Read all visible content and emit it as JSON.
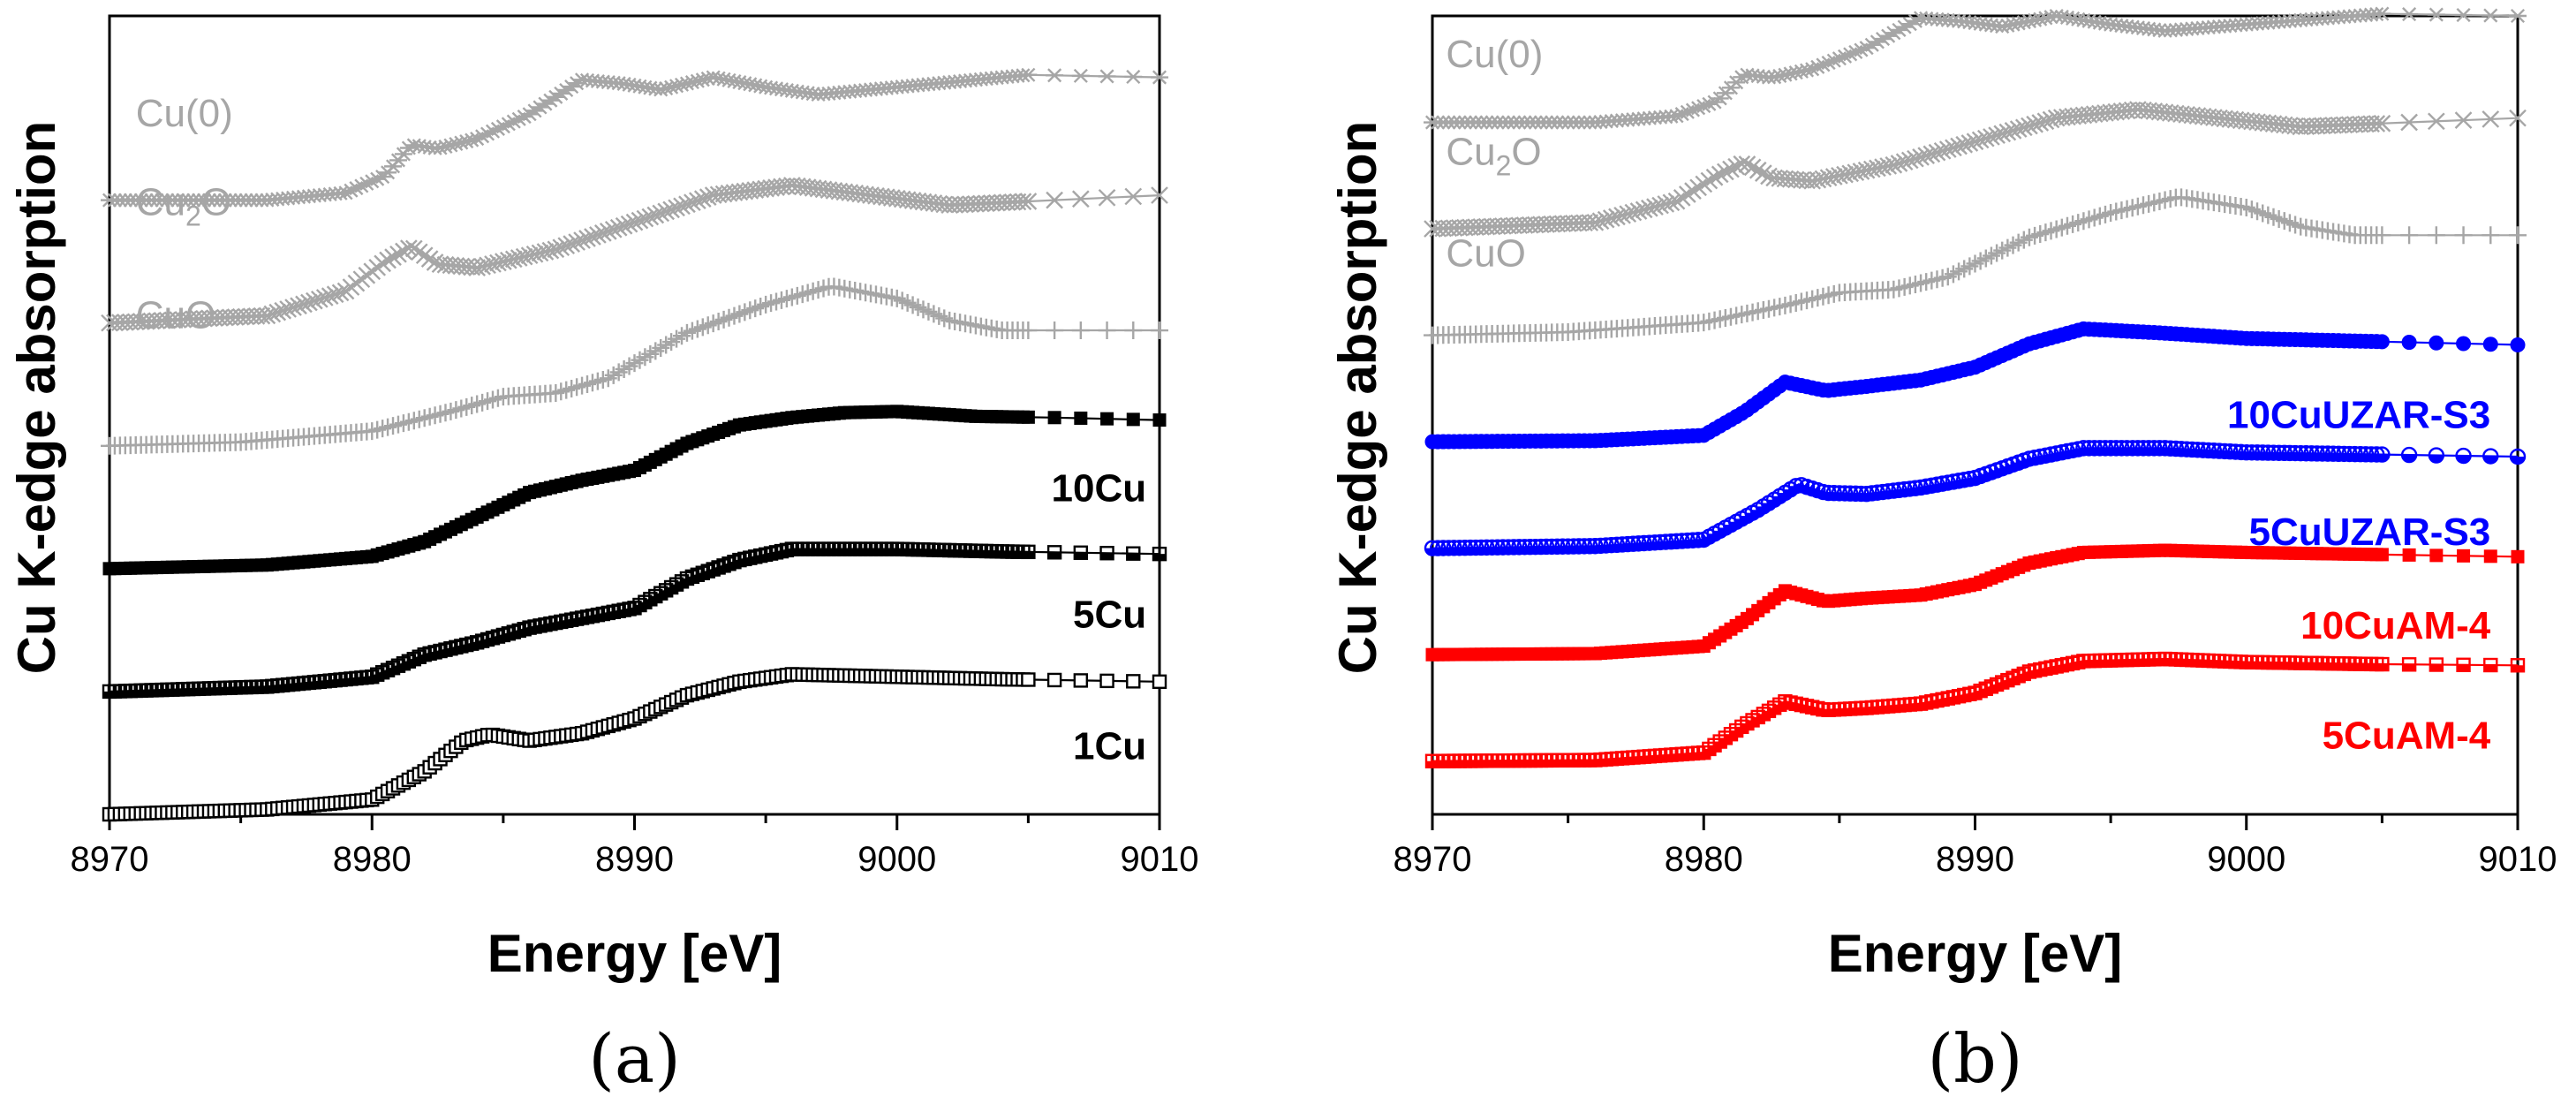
{
  "chart_data": [
    {
      "type": "line",
      "panel_label": "(a)",
      "xlabel": "Energy [eV]",
      "ylabel": "Cu K-edge absorption",
      "xlim": [
        8970,
        9010
      ],
      "ylim": [
        0,
        6.5
      ],
      "xticks": [
        "8970",
        "8980",
        "8990",
        "9000",
        "9010"
      ],
      "grid": false,
      "series": [
        {
          "name": "Cu(0)",
          "label_parts": [
            "Cu(0)"
          ],
          "color": "#a6a6a6",
          "marker": "asterisk",
          "label_x": 8971,
          "label_y": 5.6,
          "x": [
            8970,
            8976,
            8979,
            8980.5,
            8981.5,
            8982.5,
            8984,
            8986,
            8988,
            8989.5,
            8991,
            8993,
            8995,
            8997,
            9000,
            9005,
            9010
          ],
          "y": [
            5.0,
            5.0,
            5.06,
            5.2,
            5.45,
            5.42,
            5.5,
            5.7,
            5.98,
            5.95,
            5.9,
            6.0,
            5.92,
            5.86,
            5.92,
            6.02,
            6.0
          ]
        },
        {
          "name": "Cu2O",
          "label_parts": [
            "Cu",
            "2",
            "O"
          ],
          "color": "#a6a6a6",
          "marker": "cross",
          "label_x": 8971,
          "label_y": 4.88,
          "x": [
            8970,
            8976,
            8979,
            8980.5,
            8981.5,
            8982.5,
            8984,
            8987,
            8990,
            8993,
            8996,
            8999,
            9002,
            9006,
            9010
          ],
          "y": [
            4.0,
            4.06,
            4.26,
            4.5,
            4.62,
            4.48,
            4.45,
            4.6,
            4.82,
            5.04,
            5.12,
            5.04,
            4.96,
            5.0,
            5.04
          ]
        },
        {
          "name": "CuO",
          "label_parts": [
            "CuO"
          ],
          "color": "#a6a6a6",
          "marker": "plus",
          "label_x": 8971,
          "label_y": 3.96,
          "x": [
            8970,
            8975,
            8980,
            8983,
            8985,
            8987,
            8989,
            8992,
            8995,
            8997.5,
            9000,
            9002,
            9004,
            9007,
            9010
          ],
          "y": [
            3.0,
            3.03,
            3.12,
            3.28,
            3.4,
            3.43,
            3.55,
            3.92,
            4.15,
            4.3,
            4.2,
            4.02,
            3.94,
            3.94,
            3.94
          ]
        },
        {
          "name": "10Cu",
          "label_parts": [
            "10Cu"
          ],
          "color": "#000000",
          "marker": "square-filled",
          "label_x": 9009.5,
          "label_y": 2.55,
          "label_anchor": "end",
          "x": [
            8970,
            8976,
            8980,
            8982,
            8984,
            8986,
            8988,
            8990,
            8992,
            8994,
            8996,
            8998,
            9000,
            9003,
            9006,
            9010
          ],
          "y": [
            2.0,
            2.03,
            2.1,
            2.22,
            2.42,
            2.62,
            2.72,
            2.8,
            3.02,
            3.17,
            3.23,
            3.27,
            3.28,
            3.24,
            3.23,
            3.21
          ]
        },
        {
          "name": "5Cu",
          "label_parts": [
            "5Cu"
          ],
          "color": "#000000",
          "marker": "square-half",
          "label_x": 9009.5,
          "label_y": 1.52,
          "label_anchor": "end",
          "x": [
            8970,
            8976,
            8980,
            8982,
            8984,
            8986,
            8988,
            8990,
            8992,
            8994,
            8996,
            9000,
            9004,
            9010
          ],
          "y": [
            1.0,
            1.04,
            1.12,
            1.3,
            1.4,
            1.52,
            1.6,
            1.68,
            1.92,
            2.07,
            2.16,
            2.16,
            2.14,
            2.12
          ]
        },
        {
          "name": "1Cu",
          "label_parts": [
            "1Cu"
          ],
          "color": "#000000",
          "marker": "square-open",
          "label_x": 9009.5,
          "label_y": 0.45,
          "label_anchor": "end",
          "x": [
            8970,
            8976,
            8980,
            8982,
            8983.5,
            8984.5,
            8986,
            8988,
            8990,
            8992,
            8994,
            8996,
            9000,
            9004,
            9010
          ],
          "y": [
            0.0,
            0.04,
            0.12,
            0.35,
            0.6,
            0.65,
            0.6,
            0.66,
            0.78,
            0.97,
            1.08,
            1.14,
            1.12,
            1.1,
            1.08
          ]
        }
      ]
    },
    {
      "type": "line",
      "panel_label": "(b)",
      "xlabel": "Energy [eV]",
      "ylabel": "Cu K-edge absorption",
      "xlim": [
        8970,
        9010
      ],
      "ylim": [
        0,
        7.5
      ],
      "xticks": [
        "8970",
        "8980",
        "8990",
        "9000",
        "9010"
      ],
      "grid": false,
      "series": [
        {
          "name": "Cu(0)",
          "label_parts": [
            "Cu(0)"
          ],
          "color": "#a6a6a6",
          "marker": "asterisk",
          "label_x": 8970.5,
          "label_y": 7.02,
          "x": [
            8970,
            8976,
            8979,
            8980.5,
            8981.5,
            8982.5,
            8984,
            8986,
            8988,
            8989.5,
            8991,
            8993,
            8995,
            8997,
            9000,
            9005,
            9010
          ],
          "y": [
            6.5,
            6.5,
            6.56,
            6.7,
            6.95,
            6.92,
            7.0,
            7.2,
            7.48,
            7.45,
            7.4,
            7.5,
            7.42,
            7.36,
            7.42,
            7.52,
            7.5
          ]
        },
        {
          "name": "Cu2O",
          "label_parts": [
            "Cu",
            "2",
            "O"
          ],
          "color": "#a6a6a6",
          "marker": "cross",
          "label_x": 8970.5,
          "label_y": 6.1,
          "x": [
            8970,
            8976,
            8979,
            8980.5,
            8981.5,
            8982.5,
            8984,
            8987,
            8990,
            8993,
            8996,
            8999,
            9002,
            9006,
            9010
          ],
          "y": [
            5.5,
            5.56,
            5.76,
            6.0,
            6.12,
            5.98,
            5.95,
            6.1,
            6.32,
            6.54,
            6.62,
            6.54,
            6.46,
            6.5,
            6.54
          ]
        },
        {
          "name": "CuO",
          "label_parts": [
            "CuO"
          ],
          "color": "#a6a6a6",
          "marker": "plus",
          "label_x": 8970.5,
          "label_y": 5.15,
          "x": [
            8970,
            8975,
            8980,
            8983,
            8985,
            8987,
            8989,
            8992,
            8995,
            8997.5,
            9000,
            9002,
            9004,
            9007,
            9010
          ],
          "y": [
            4.5,
            4.53,
            4.62,
            4.78,
            4.9,
            4.93,
            5.05,
            5.42,
            5.65,
            5.8,
            5.7,
            5.52,
            5.44,
            5.44,
            5.44
          ]
        },
        {
          "name": "10CuUZAR-S3",
          "label_parts": [
            "10CuUZAR-S3"
          ],
          "color": "#0000ff",
          "marker": "circle-filled",
          "label_x": 9009,
          "label_y": 3.63,
          "label_anchor": "end",
          "x": [
            8970,
            8976,
            8980,
            8981.5,
            8983,
            8984.5,
            8986,
            8988,
            8990,
            8992,
            8994,
            8997,
            9000,
            9005,
            9010
          ],
          "y": [
            3.5,
            3.51,
            3.56,
            3.78,
            4.06,
            3.98,
            4.02,
            4.08,
            4.2,
            4.42,
            4.56,
            4.52,
            4.47,
            4.44,
            4.41
          ]
        },
        {
          "name": "5CuUZAR-S3",
          "label_parts": [
            "5CuUZAR-S3"
          ],
          "color": "#0000ff",
          "marker": "circle-half",
          "label_x": 9009,
          "label_y": 2.53,
          "label_anchor": "end",
          "x": [
            8970,
            8976,
            8980,
            8982,
            8983.5,
            8984.5,
            8986,
            8988,
            8990,
            8992,
            8994,
            8997,
            9000,
            9005,
            9010
          ],
          "y": [
            2.5,
            2.52,
            2.58,
            2.86,
            3.1,
            3.02,
            3.01,
            3.07,
            3.16,
            3.34,
            3.44,
            3.44,
            3.4,
            3.38,
            3.36
          ]
        },
        {
          "name": "10CuAM-4",
          "label_parts": [
            "10CuAM-4"
          ],
          "color": "#ff0000",
          "marker": "square-filled",
          "label_x": 9009,
          "label_y": 1.65,
          "label_anchor": "end",
          "x": [
            8970,
            8976,
            8980,
            8981.5,
            8983,
            8984.5,
            8986,
            8988,
            8990,
            8992,
            8994,
            8997,
            9000,
            9005,
            9010
          ],
          "y": [
            1.5,
            1.51,
            1.58,
            1.82,
            2.1,
            2.0,
            2.03,
            2.06,
            2.16,
            2.36,
            2.46,
            2.48,
            2.46,
            2.44,
            2.42
          ]
        },
        {
          "name": "5CuAM-4",
          "label_parts": [
            "5CuAM-4"
          ],
          "color": "#ff0000",
          "marker": "square-half",
          "label_x": 9009,
          "label_y": 0.62,
          "label_anchor": "end",
          "x": [
            8970,
            8976,
            8980,
            8981.5,
            8983,
            8984.5,
            8986,
            8988,
            8990,
            8992,
            8994,
            8997,
            9000,
            9005,
            9010
          ],
          "y": [
            0.5,
            0.51,
            0.58,
            0.84,
            1.06,
            0.98,
            1.0,
            1.04,
            1.14,
            1.34,
            1.44,
            1.46,
            1.43,
            1.41,
            1.4
          ]
        }
      ]
    }
  ]
}
